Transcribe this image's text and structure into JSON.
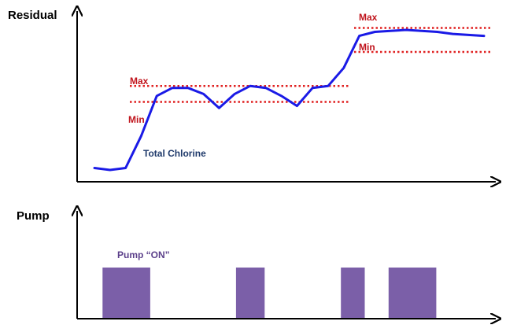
{
  "colors": {
    "axis": "#000000",
    "curve": "#1a1ae6",
    "limit_line": "#e02020",
    "limit_text": "#c0141c",
    "series_label": "#1f3a6b",
    "pump_bar": "#7b5fa8",
    "pump_label": "#5b3f8a"
  },
  "chart_data": [
    {
      "type": "line",
      "title": "Residual",
      "series": [
        {
          "name": "Total Chlorine",
          "x": [
            0,
            4,
            8,
            12,
            16,
            20,
            24,
            28,
            32,
            36,
            40,
            44,
            48,
            52,
            56,
            60,
            64,
            68,
            72,
            76,
            80,
            84,
            88,
            92,
            96,
            100
          ],
          "values": [
            1.2,
            1.1,
            1.2,
            2.8,
            4.8,
            5.2,
            5.2,
            4.9,
            4.2,
            4.9,
            5.3,
            5.2,
            4.8,
            4.3,
            5.2,
            5.3,
            6.2,
            7.8,
            8.0,
            8.05,
            8.1,
            8.05,
            8.0,
            7.9,
            7.85,
            7.8
          ]
        }
      ],
      "limits": {
        "segment_1": {
          "max_label": "Max",
          "min_label": "Min",
          "max": 5.3,
          "min": 4.5
        },
        "segment_2": {
          "max_label": "Max",
          "min_label": "Min",
          "max": 8.2,
          "min": 7.0
        }
      }
    },
    {
      "type": "bar",
      "title": "Pump",
      "annotation": "Pump “ON”",
      "intervals": [
        [
          12,
          22
        ],
        [
          40,
          46
        ],
        [
          62,
          67
        ],
        [
          72,
          82
        ]
      ]
    }
  ]
}
